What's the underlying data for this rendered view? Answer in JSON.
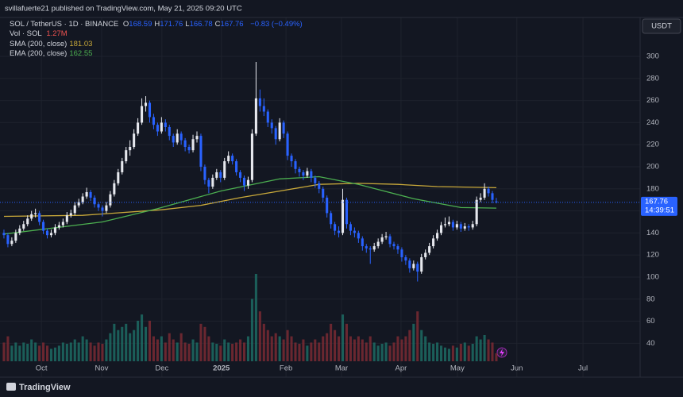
{
  "header": {
    "publisher": "svillafuerte21 published on TradingView.com, May 21, 2025 09:20 UTC",
    "footer": "TradingView"
  },
  "chart_data": {
    "type": "candlestick",
    "title": "SOL / TetherUS · 1D · BINANCE",
    "ohlc_letters": [
      "O",
      "H",
      "L",
      "C"
    ],
    "change": "−0.83 (−0.49%)",
    "volume_title": "Vol · SOL",
    "last_volume": "1.27M",
    "currency": "USDT",
    "countdown": "14:39:51",
    "up_color": "#e6e8ee",
    "down_color": "#2962ff",
    "vol_up_color": "#1d6b63",
    "vol_down_color": "#7a2a33",
    "grid": true,
    "ylim": [
      23.7,
      335.3
    ],
    "yticks": [
      40,
      60,
      80,
      100,
      120,
      140,
      160,
      180,
      200,
      220,
      240,
      260,
      280,
      300
    ],
    "xlim": [
      -1,
      161.5
    ],
    "xticks": [
      {
        "value": 9.5,
        "label": "Oct"
      },
      {
        "value": 24.8,
        "label": "Nov"
      },
      {
        "value": 40.1,
        "label": "Dec"
      },
      {
        "value": 55.2,
        "label": "2025"
      },
      {
        "value": 71.6,
        "label": "Feb"
      },
      {
        "value": 85.7,
        "label": "Mar"
      },
      {
        "value": 100.8,
        "label": "Apr"
      },
      {
        "value": 115.1,
        "label": "May"
      },
      {
        "value": 130.2,
        "label": "Jun"
      },
      {
        "value": 147,
        "label": "Jul"
      }
    ],
    "vlim": [
      0,
      14
    ],
    "candles": [
      [
        140,
        143,
        135,
        138
      ],
      [
        138,
        140,
        127,
        130
      ],
      [
        130,
        136,
        128,
        133
      ],
      [
        133,
        143,
        131,
        140
      ],
      [
        140,
        147,
        138,
        144
      ],
      [
        144,
        151,
        142,
        148
      ],
      [
        148,
        156,
        146,
        153
      ],
      [
        153,
        160,
        151,
        157
      ],
      [
        157,
        162,
        154,
        158
      ],
      [
        158,
        160,
        147,
        150
      ],
      [
        150,
        152,
        139,
        142
      ],
      [
        142,
        144,
        135,
        138
      ],
      [
        138,
        143,
        136,
        140
      ],
      [
        140,
        148,
        138,
        145
      ],
      [
        145,
        150,
        143,
        147
      ],
      [
        147,
        153,
        145,
        150
      ],
      [
        150,
        159,
        148,
        156
      ],
      [
        156,
        161,
        154,
        158
      ],
      [
        158,
        168,
        156,
        165
      ],
      [
        165,
        171,
        163,
        168
      ],
      [
        168,
        176,
        166,
        173
      ],
      [
        173,
        181,
        171,
        177
      ],
      [
        177,
        179,
        169,
        172
      ],
      [
        172,
        174,
        163,
        166
      ],
      [
        166,
        168,
        160,
        163
      ],
      [
        163,
        165,
        155,
        160
      ],
      [
        160,
        168,
        158,
        165
      ],
      [
        165,
        178,
        163,
        175
      ],
      [
        175,
        188,
        173,
        185
      ],
      [
        185,
        198,
        183,
        195
      ],
      [
        195,
        208,
        193,
        205
      ],
      [
        205,
        218,
        203,
        215
      ],
      [
        215,
        224,
        210,
        218
      ],
      [
        218,
        234,
        216,
        230
      ],
      [
        230,
        244,
        228,
        240
      ],
      [
        240,
        262,
        238,
        255
      ],
      [
        255,
        264,
        250,
        258
      ],
      [
        258,
        260,
        240,
        245
      ],
      [
        245,
        248,
        234,
        238
      ],
      [
        238,
        240,
        228,
        232
      ],
      [
        232,
        245,
        230,
        240
      ],
      [
        240,
        243,
        232,
        236
      ],
      [
        236,
        238,
        224,
        228
      ],
      [
        228,
        230,
        218,
        222
      ],
      [
        222,
        234,
        220,
        230
      ],
      [
        230,
        232,
        220,
        224
      ],
      [
        224,
        226,
        214,
        218
      ],
      [
        218,
        220,
        212,
        215
      ],
      [
        215,
        229,
        213,
        225
      ],
      [
        225,
        232,
        222,
        228
      ],
      [
        228,
        230,
        196,
        200
      ],
      [
        200,
        202,
        184,
        188
      ],
      [
        188,
        190,
        176,
        182
      ],
      [
        182,
        193,
        180,
        190
      ],
      [
        190,
        198,
        188,
        195
      ],
      [
        195,
        197,
        186,
        190
      ],
      [
        190,
        208,
        188,
        205
      ],
      [
        205,
        214,
        203,
        210
      ],
      [
        210,
        212,
        202,
        205
      ],
      [
        205,
        207,
        192,
        195
      ],
      [
        195,
        197,
        186,
        190
      ],
      [
        190,
        192,
        178,
        183
      ],
      [
        183,
        191,
        180,
        188
      ],
      [
        188,
        234,
        186,
        230
      ],
      [
        230,
        295,
        228,
        262
      ],
      [
        262,
        270,
        250,
        255
      ],
      [
        255,
        262,
        246,
        250
      ],
      [
        250,
        252,
        236,
        240
      ],
      [
        240,
        243,
        230,
        235
      ],
      [
        235,
        237,
        220,
        225
      ],
      [
        225,
        244,
        223,
        240
      ],
      [
        240,
        242,
        226,
        230
      ],
      [
        230,
        232,
        206,
        210
      ],
      [
        210,
        212,
        200,
        205
      ],
      [
        205,
        207,
        194,
        198
      ],
      [
        198,
        200,
        191,
        195
      ],
      [
        195,
        197,
        188,
        192
      ],
      [
        192,
        199,
        190,
        196
      ],
      [
        196,
        198,
        186,
        190
      ],
      [
        190,
        192,
        181,
        185
      ],
      [
        185,
        187,
        176,
        180
      ],
      [
        180,
        182,
        168,
        172
      ],
      [
        172,
        174,
        154,
        158
      ],
      [
        158,
        160,
        144,
        148
      ],
      [
        148,
        150,
        138,
        142
      ],
      [
        142,
        146,
        136,
        140
      ],
      [
        140,
        180,
        138,
        170
      ],
      [
        170,
        172,
        144,
        148
      ],
      [
        148,
        150,
        138,
        142
      ],
      [
        142,
        145,
        136,
        140
      ],
      [
        140,
        142,
        131,
        135
      ],
      [
        135,
        137,
        124,
        128
      ],
      [
        128,
        130,
        122,
        126
      ],
      [
        126,
        128,
        112,
        125
      ],
      [
        125,
        131,
        123,
        128
      ],
      [
        128,
        135,
        126,
        132
      ],
      [
        132,
        139,
        130,
        136
      ],
      [
        136,
        141,
        134,
        137
      ],
      [
        137,
        139,
        127,
        130
      ],
      [
        130,
        132,
        125,
        128
      ],
      [
        128,
        130,
        121,
        125
      ],
      [
        125,
        127,
        114,
        118
      ],
      [
        118,
        120,
        111,
        115
      ],
      [
        115,
        117,
        104,
        108
      ],
      [
        108,
        115,
        106,
        112
      ],
      [
        112,
        114,
        96,
        105
      ],
      [
        105,
        121,
        103,
        118
      ],
      [
        118,
        125,
        116,
        122
      ],
      [
        122,
        131,
        120,
        128
      ],
      [
        128,
        138,
        126,
        135
      ],
      [
        135,
        143,
        133,
        140
      ],
      [
        140,
        150,
        138,
        147
      ],
      [
        147,
        154,
        145,
        148
      ],
      [
        148,
        155,
        146,
        150
      ],
      [
        150,
        152,
        142,
        145
      ],
      [
        145,
        151,
        143,
        148
      ],
      [
        148,
        150,
        141,
        144
      ],
      [
        144,
        149,
        142,
        146
      ],
      [
        146,
        148,
        142,
        145
      ],
      [
        145,
        151,
        143,
        148
      ],
      [
        148,
        173,
        146,
        170
      ],
      [
        170,
        176,
        168,
        172
      ],
      [
        172,
        185,
        170,
        180
      ],
      [
        180,
        182,
        173,
        176
      ],
      [
        176,
        178,
        167,
        170
      ],
      [
        168.59,
        171.76,
        166.78,
        167.76
      ]
    ],
    "volume": [
      3,
      4,
      2.5,
      3,
      2.5,
      3,
      2.8,
      3.5,
      3,
      2.5,
      3,
      2.5,
      2,
      2.2,
      2.5,
      3,
      2.8,
      3,
      3.5,
      3,
      4,
      3.5,
      3,
      2.5,
      3,
      2.8,
      3.5,
      4.5,
      6,
      5,
      5.5,
      6,
      4.5,
      5,
      6.5,
      7.5,
      5.5,
      6.5,
      4,
      3.5,
      4,
      3,
      4.5,
      3.5,
      3,
      4.5,
      3,
      2.8,
      3.5,
      3,
      6,
      5.5,
      4,
      3,
      2.8,
      2.5,
      3.5,
      3,
      2.8,
      3,
      3.5,
      3,
      4,
      10,
      14,
      8,
      6,
      5,
      4,
      4.5,
      4,
      3.5,
      5,
      4,
      3,
      2.8,
      3.5,
      2.5,
      3,
      3.5,
      3,
      4,
      4.5,
      6,
      5,
      4,
      7.5,
      6,
      4,
      3.5,
      4,
      3.5,
      3,
      4,
      3,
      2.5,
      2.8,
      3,
      2.5,
      3,
      4,
      3.5,
      4,
      5,
      6,
      8,
      5,
      4,
      3,
      2.8,
      3,
      2.5,
      2.2,
      2,
      2.5,
      2.2,
      2.8,
      3,
      2.5,
      2.8,
      4,
      3.5,
      4.2,
      3.5,
      3,
      1.27
    ],
    "lines": [
      {
        "name": "SMA (200, close)",
        "color": "#c9a93a",
        "x": [
          0,
          20,
          40,
          50,
          60,
          70,
          80,
          90,
          100,
          110,
          125
        ],
        "values": [
          155,
          156,
          161,
          165,
          172,
          178,
          184,
          185,
          184,
          182,
          181.03
        ]
      },
      {
        "name": "EMA (200, close)",
        "color": "#4caf50",
        "x": [
          0,
          25,
          39,
          55,
          70,
          80,
          90,
          104,
          116,
          125
        ],
        "values": [
          139,
          150,
          162,
          178,
          189,
          191,
          184,
          171,
          163,
          162.55
        ]
      }
    ]
  }
}
